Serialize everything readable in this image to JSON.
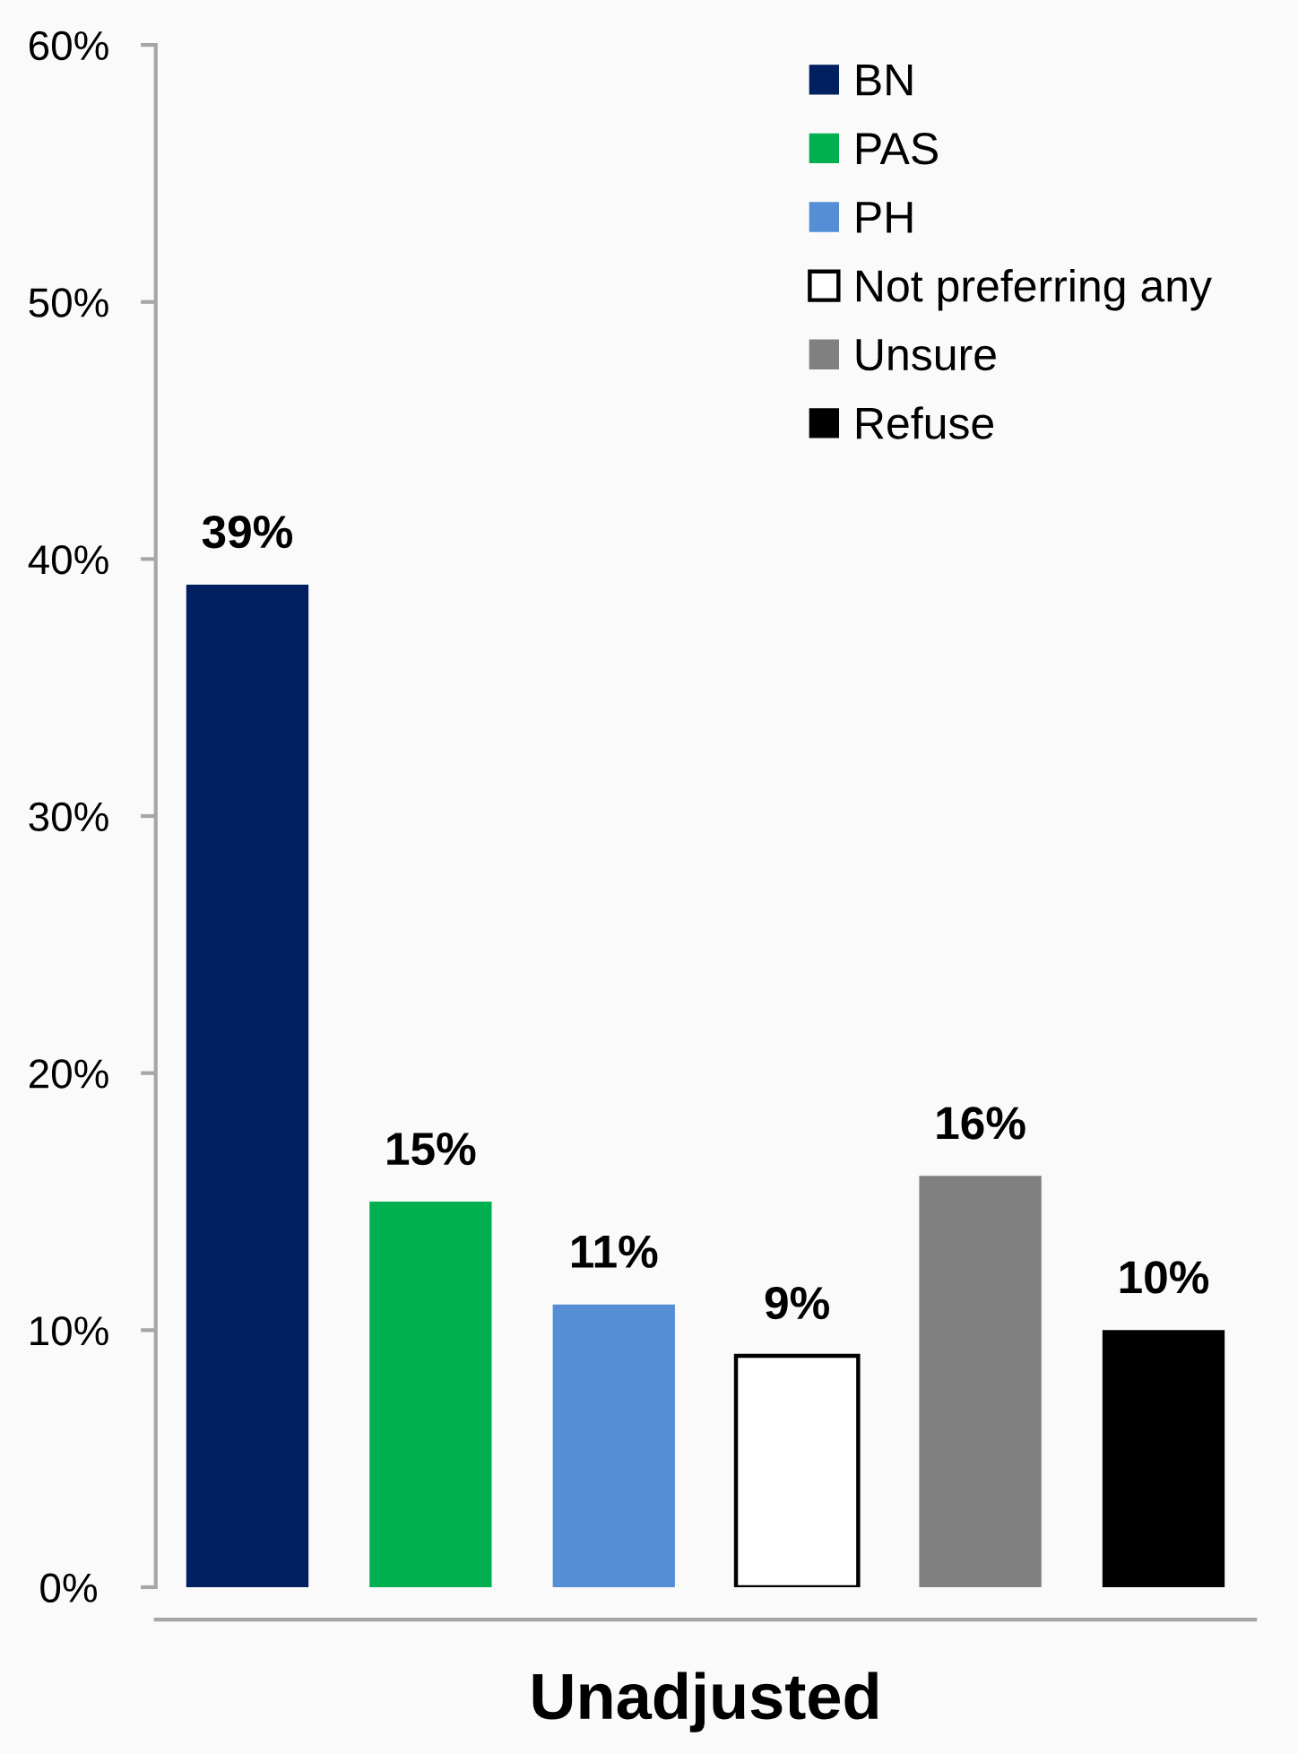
{
  "chart_data": {
    "type": "bar",
    "stacked": true,
    "xlabel": "Unadjusted",
    "categories": [
      null,
      null,
      null,
      null,
      null,
      null
    ],
    "series": [
      {
        "name": "BN",
        "color": "#002060",
        "values": [
          39,
          null,
          null,
          null,
          null,
          null
        ],
        "value_labels": [
          "39%",
          null,
          null,
          null,
          null,
          null
        ]
      },
      {
        "name": "PAS",
        "color": "#00b050",
        "values": [
          null,
          15,
          null,
          null,
          null,
          null
        ],
        "value_labels": [
          null,
          "15%",
          null,
          null,
          null,
          null
        ]
      },
      {
        "name": "PH",
        "color": "#558ed5",
        "values": [
          null,
          null,
          11,
          null,
          null,
          null
        ],
        "value_labels": [
          null,
          null,
          "11%",
          null,
          null,
          null
        ]
      },
      {
        "name": "Not preferring any",
        "color": "#ffffff",
        "values": [
          null,
          null,
          null,
          9,
          null,
          null
        ],
        "value_labels": [
          null,
          null,
          null,
          "9%",
          null,
          null
        ]
      },
      {
        "name": "Unsure",
        "color": "#808080",
        "values": [
          null,
          null,
          null,
          null,
          16,
          null
        ],
        "value_labels": [
          null,
          null,
          null,
          null,
          "16%",
          null
        ]
      },
      {
        "name": "Refuse",
        "color": "#000000",
        "values": [
          null,
          null,
          null,
          null,
          null,
          10
        ],
        "value_labels": [
          null,
          null,
          null,
          null,
          null,
          "10%"
        ]
      }
    ],
    "ylim": [
      0,
      60
    ],
    "yticks": [
      {
        "value": 0,
        "label": "0%"
      },
      {
        "value": 10,
        "label": "10%"
      },
      {
        "value": 20,
        "label": "20%"
      },
      {
        "value": 30,
        "label": "30%"
      },
      {
        "value": 40,
        "label": "40%"
      },
      {
        "value": 50,
        "label": "50%"
      },
      {
        "value": 60,
        "label": "60%"
      }
    ],
    "legend": "top right"
  }
}
